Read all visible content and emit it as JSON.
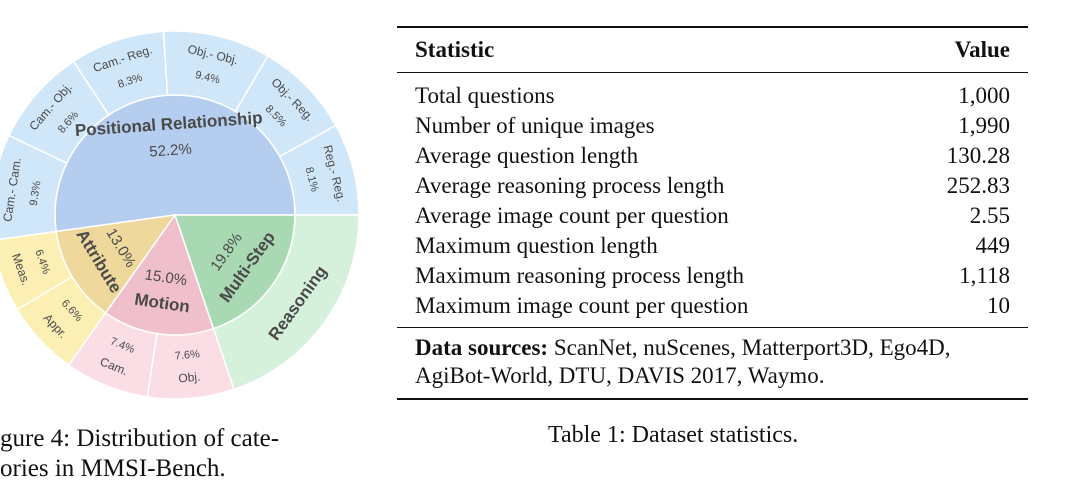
{
  "chart_data": {
    "type": "sunburst",
    "groups": [
      {
        "name": "Positional Relationship",
        "value": 52.2,
        "value_label": "52.2%",
        "color": "#b5cdee",
        "outer_color": "#d0e6f9",
        "children": [
          {
            "name": "Reg.- Reg.",
            "value": 8.1,
            "value_label": "8.1%"
          },
          {
            "name": "Obj.- Reg.",
            "value": 8.5,
            "value_label": "8.5%"
          },
          {
            "name": "Obj.- Obj.",
            "value": 9.4,
            "value_label": "9.4%"
          },
          {
            "name": "Cam.- Reg.",
            "value": 8.3,
            "value_label": "8.3%"
          },
          {
            "name": "Cam.- Obj.",
            "value": 8.6,
            "value_label": "8.6%"
          },
          {
            "name": "Cam.- Cam.",
            "value": 9.3,
            "value_label": "9.3%"
          }
        ]
      },
      {
        "name": "Attribute",
        "value": 13.0,
        "value_label": "13.0%",
        "color": "#efd89c",
        "outer_color": "#fbefb4",
        "children": [
          {
            "name": "Meas.",
            "value": 6.4,
            "value_label": "6.4%"
          },
          {
            "name": "Appr.",
            "value": 6.6,
            "value_label": "6.6%"
          }
        ]
      },
      {
        "name": "Motion",
        "value": 15.0,
        "value_label": "15.0%",
        "color": "#f0bfcc",
        "outer_color": "#fbdde5",
        "children": [
          {
            "name": "Cam.",
            "value": 7.4,
            "value_label": "7.4%"
          },
          {
            "name": "Obj.",
            "value": 7.6,
            "value_label": "7.6%"
          }
        ]
      },
      {
        "name": "Multi-Step",
        "value": 19.8,
        "value_label": "19.8%",
        "color": "#a9d9b2",
        "outer_color": "#d5f1db",
        "outer_label": "Reasoning"
      }
    ]
  },
  "figure_caption": [
    "gure 4:  Distribution of cate-",
    "ories in MMSI-Bench."
  ],
  "table": {
    "header": [
      "Statistic",
      "Value"
    ],
    "rows": [
      [
        "Total questions",
        "1,000"
      ],
      [
        "Number of unique images",
        "1,990"
      ],
      [
        "Average question length",
        "130.28"
      ],
      [
        "Average reasoning process length",
        "252.83"
      ],
      [
        "Average image count per question",
        "2.55"
      ],
      [
        "Maximum question length",
        "449"
      ],
      [
        "Maximum reasoning process length",
        "1,118"
      ],
      [
        "Maximum image count per question",
        "10"
      ]
    ],
    "sources": {
      "label": "Data sources:",
      "text": "ScanNet, nuScenes, Matterport3D, Ego4D, AgiBot-World, DTU, DAVIS 2017, Waymo."
    }
  },
  "table_caption": "Table 1: Dataset statistics."
}
